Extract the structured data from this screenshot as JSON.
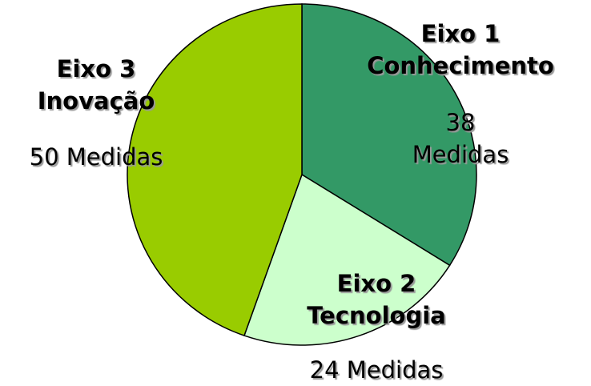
{
  "chart_data": {
    "type": "pie",
    "categories": [
      "Eixo 1\nConhecimento",
      "Eixo 2\nTecnologia",
      "Eixo 3\nInovação"
    ],
    "values": [
      38,
      24,
      50
    ],
    "value_labels": [
      "38 Medidas",
      "24 Medidas",
      "50 Medidas"
    ],
    "colors": [
      "#339966",
      "#ccffcc",
      "#99cc00"
    ]
  }
}
